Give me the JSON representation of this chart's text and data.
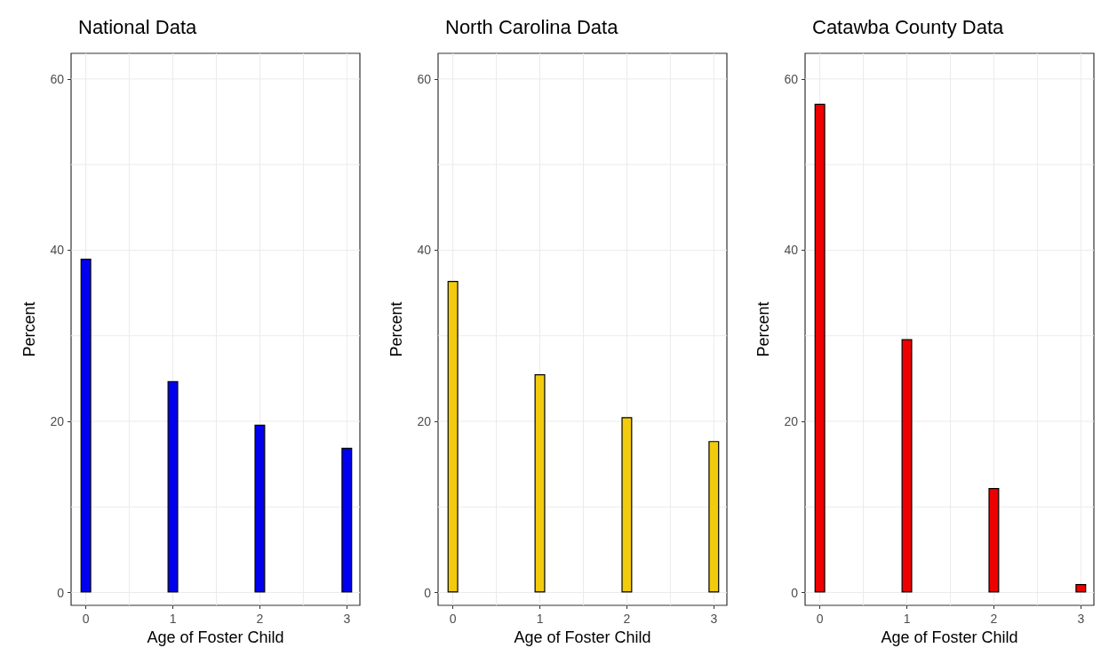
{
  "chart_data": [
    {
      "type": "bar",
      "title": "National Data",
      "xlabel": "Age of Foster Child",
      "ylabel": "Percent",
      "x": [
        0,
        1,
        2,
        3
      ],
      "series": [
        {
          "color": "#0000ee",
          "values": [
            39.0,
            24.7,
            19.6,
            16.9
          ]
        }
      ],
      "xlim": [
        -0.17,
        3.15
      ],
      "xticks": [
        0,
        {
          "value": 0.5,
          "label": null
        },
        1,
        {
          "value": 1.5,
          "label": null
        },
        2,
        {
          "value": 2.5,
          "label": null
        },
        3
      ],
      "ylim": [
        -1.5,
        63
      ],
      "yticks": [
        0,
        {
          "value": 10,
          "label": null
        },
        20,
        {
          "value": 30,
          "label": null
        },
        40,
        {
          "value": 50,
          "label": null
        },
        60
      ],
      "grid": true
    },
    {
      "type": "bar",
      "title": "North Carolina Data",
      "xlabel": "Age of Foster Child",
      "ylabel": "Percent",
      "x": [
        0,
        1,
        2,
        3
      ],
      "series": [
        {
          "color": "#f2cc0c",
          "values": [
            36.4,
            25.5,
            20.5,
            17.7
          ]
        }
      ],
      "xlim": [
        -0.17,
        3.15
      ],
      "xticks": [
        0,
        {
          "value": 0.5,
          "label": null
        },
        1,
        {
          "value": 1.5,
          "label": null
        },
        2,
        {
          "value": 2.5,
          "label": null
        },
        3
      ],
      "ylim": [
        -1.5,
        63
      ],
      "yticks": [
        0,
        {
          "value": 10,
          "label": null
        },
        20,
        {
          "value": 30,
          "label": null
        },
        40,
        {
          "value": 50,
          "label": null
        },
        60
      ],
      "grid": true
    },
    {
      "type": "bar",
      "title": "Catawba County Data",
      "xlabel": "Age of Foster Child",
      "ylabel": "Percent",
      "x": [
        0,
        1,
        2,
        3
      ],
      "series": [
        {
          "color": "#ee0000",
          "values": [
            57.1,
            29.6,
            12.2,
            1.0
          ]
        }
      ],
      "xlim": [
        -0.17,
        3.15
      ],
      "xticks": [
        0,
        {
          "value": 0.5,
          "label": null
        },
        1,
        {
          "value": 1.5,
          "label": null
        },
        2,
        {
          "value": 2.5,
          "label": null
        },
        3
      ],
      "ylim": [
        -1.5,
        63
      ],
      "yticks": [
        0,
        {
          "value": 10,
          "label": null
        },
        20,
        {
          "value": 30,
          "label": null
        },
        40,
        {
          "value": 50,
          "label": null
        },
        60
      ],
      "grid": true
    }
  ]
}
